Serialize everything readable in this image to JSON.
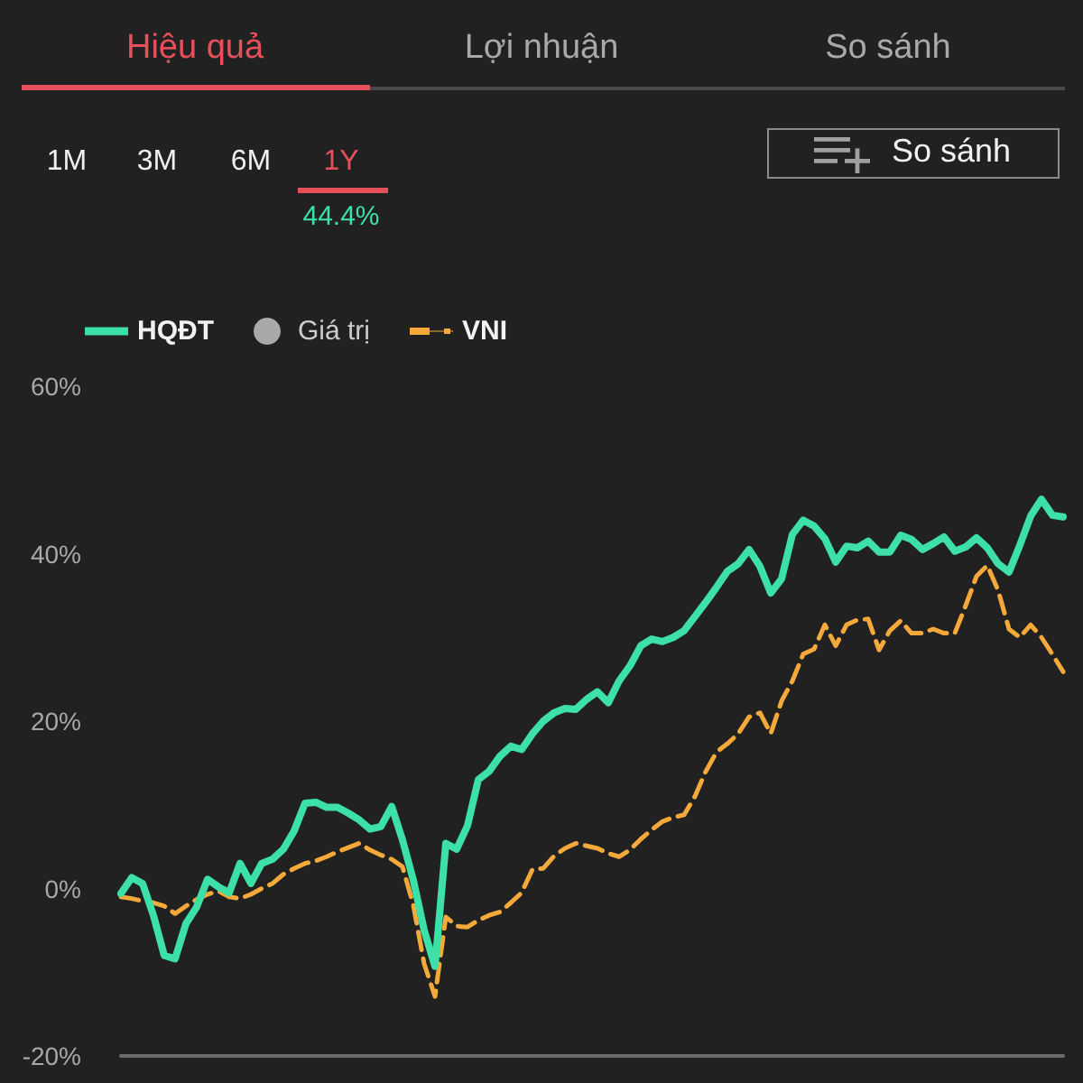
{
  "chart_data": {
    "type": "line",
    "annotations": [
      "Hiệu quả",
      "Lợi nhuận",
      "So sánh",
      "1M",
      "3M",
      "6M",
      "1Y",
      "44.4%",
      "So sánh"
    ],
    "categories": [
      null,
      null,
      null,
      null,
      null,
      null,
      null,
      null,
      null,
      null,
      null,
      null,
      null,
      null,
      null,
      null,
      null,
      null,
      null,
      null,
      null,
      null,
      null,
      null,
      null,
      null,
      null,
      null,
      null,
      null,
      null,
      null,
      null,
      null,
      null,
      null,
      null,
      null,
      null,
      null,
      null,
      null,
      null,
      null,
      null,
      null,
      null,
      null,
      null,
      null,
      null,
      null,
      null,
      null,
      null,
      null,
      null,
      null,
      null,
      null,
      null,
      null,
      null,
      null,
      null,
      null,
      null,
      null,
      null,
      null,
      null,
      null,
      null,
      null,
      null,
      null,
      null,
      null,
      null,
      null,
      null,
      null,
      null,
      null,
      null,
      null,
      null,
      null
    ],
    "series": [
      {
        "name": "HQĐT",
        "color": "#3de0a6",
        "line_style": "solid",
        "values": [
          -0.6,
          1.3,
          0.6,
          -3.2,
          -8.0,
          -8.4,
          -4.2,
          -2.2,
          1.1,
          0.2,
          -0.5,
          3.0,
          0.6,
          3.0,
          3.5,
          4.7,
          6.9,
          10.2,
          10.3,
          9.7,
          9.7,
          9.0,
          8.2,
          7.1,
          7.4,
          9.8,
          5.8,
          1.0,
          -5.0,
          -9.3,
          5.4,
          4.7,
          7.5,
          13.0,
          14.0,
          15.8,
          17.0,
          16.6,
          18.5,
          20.0,
          21.0,
          21.5,
          21.4,
          22.6,
          23.5,
          22.2,
          24.8,
          26.6,
          29.0,
          29.8,
          29.5,
          30.0,
          30.8,
          32.5,
          34.2,
          36.0,
          37.9,
          38.8,
          40.5,
          38.5,
          35.3,
          37.0,
          42.3,
          44.0,
          43.3,
          41.8,
          39.0,
          40.9,
          40.7,
          41.5,
          40.2,
          40.2,
          42.2,
          41.7,
          40.5,
          41.2,
          42.0,
          40.3,
          40.8,
          41.9,
          40.7,
          38.8,
          37.8,
          41.0,
          44.5,
          46.5,
          44.6,
          44.4
        ]
      },
      {
        "name": "Giá trị",
        "type": "scatter",
        "color": "#cccccc",
        "values": [
          null,
          null,
          null,
          null,
          null,
          null,
          null,
          null,
          null,
          null,
          null,
          null,
          null,
          null,
          null,
          null,
          null,
          null,
          null,
          null,
          null,
          null,
          null,
          null,
          null,
          null,
          null,
          null,
          null,
          null,
          null,
          null,
          null,
          null,
          null,
          null,
          null,
          null,
          null,
          null,
          null,
          null,
          null,
          null,
          null,
          null,
          null,
          null,
          null,
          null,
          null,
          null,
          null,
          null,
          null,
          null,
          null,
          null,
          null,
          null,
          null,
          null,
          null,
          null,
          null,
          null,
          null,
          null,
          null,
          null,
          null,
          null,
          null,
          null,
          null,
          null,
          null,
          null,
          null,
          null,
          null,
          null,
          null,
          null,
          null,
          null,
          null,
          null
        ]
      },
      {
        "name": "VNI",
        "color": "#f4a93a",
        "line_style": "dashed",
        "values": [
          -1.0,
          -1.2,
          -1.5,
          -1.7,
          -2.1,
          -3.0,
          -2.1,
          -1.3,
          -0.7,
          -0.3,
          -1.0,
          -1.2,
          -0.7,
          0.0,
          0.6,
          1.7,
          2.4,
          3.0,
          3.3,
          3.8,
          4.4,
          4.9,
          5.4,
          4.6,
          4.0,
          3.5,
          2.6,
          -2.0,
          -9.0,
          -12.9,
          -3.4,
          -4.5,
          -4.6,
          -3.8,
          -3.2,
          -2.8,
          -1.7,
          -0.5,
          2.3,
          2.4,
          3.9,
          4.8,
          5.4,
          5.1,
          4.8,
          4.2,
          3.8,
          4.6,
          5.9,
          7.0,
          8.0,
          8.5,
          8.8,
          11.0,
          14.0,
          16.3,
          17.3,
          18.5,
          20.5,
          21.0,
          18.5,
          22.4,
          24.8,
          28.0,
          28.6,
          31.5,
          29.0,
          31.5,
          32.1,
          32.2,
          28.5,
          30.8,
          32.0,
          30.5,
          30.5,
          31.0,
          30.5,
          30.5,
          33.8,
          37.3,
          38.6,
          35.6,
          31.0,
          30.0,
          31.5,
          30.0,
          28.0,
          25.9
        ]
      }
    ],
    "ylim": [
      -20,
      60
    ],
    "yticks": [
      {
        "value": 60,
        "label": "60%"
      },
      {
        "value": 40,
        "label": "40%"
      },
      {
        "value": 20,
        "label": "20%"
      },
      {
        "value": 0,
        "label": "0%"
      },
      {
        "value": -20,
        "label": "-20%"
      }
    ],
    "grid": false,
    "legend": "top left",
    "marker": "none",
    "tick_labels": "y"
  }
}
